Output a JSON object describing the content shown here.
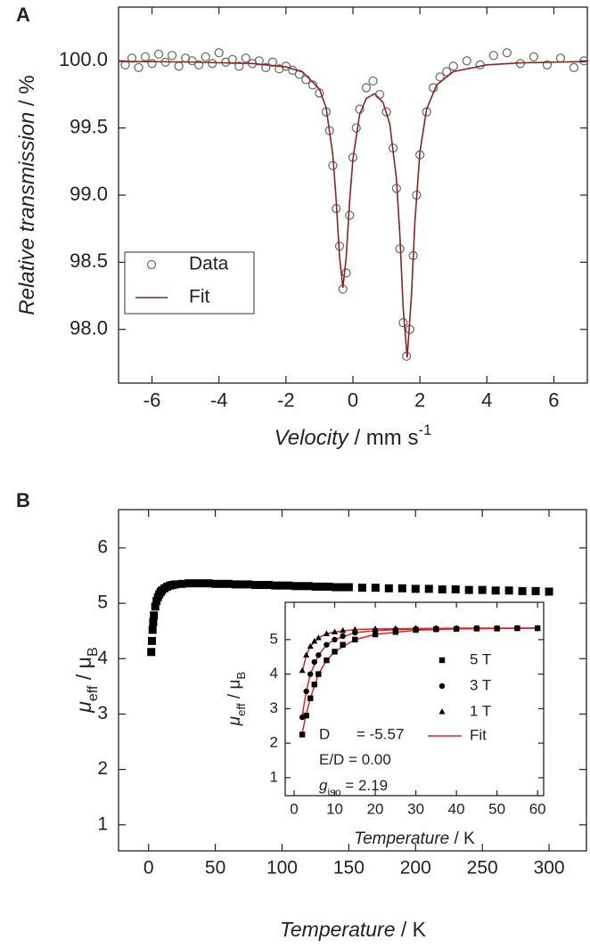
{
  "chart_data": [
    {
      "type": "scatter",
      "panel": "A",
      "x_label": [
        "Velocity",
        " / mm s",
        "-1"
      ],
      "y_label": [
        "Relative transmission",
        " / %"
      ],
      "xlim": [
        -7,
        7
      ],
      "xticks": [
        -6,
        -4,
        -2,
        0,
        2,
        4,
        6
      ],
      "ylim": [
        97.6,
        100.4
      ],
      "yticks": [
        {
          "value": 98,
          "label": "98.0"
        },
        {
          "value": 98.5,
          "label": "98.5"
        },
        {
          "value": 99,
          "label": "99.0"
        },
        {
          "value": 99.5,
          "label": "99.5"
        },
        {
          "value": 100,
          "label": "100.0"
        }
      ],
      "legend": "lower left",
      "series": [
        {
          "name": "Data",
          "color": "#707070",
          "marker": "open-circle",
          "x": [
            -6.8,
            -6.6,
            -6.4,
            -6.2,
            -6.0,
            -5.8,
            -5.6,
            -5.4,
            -5.2,
            -5.0,
            -4.8,
            -4.6,
            -4.4,
            -4.2,
            -4.0,
            -3.8,
            -3.6,
            -3.4,
            -3.2,
            -3.0,
            -2.8,
            -2.6,
            -2.4,
            -2.2,
            -2.0,
            -1.8,
            -1.6,
            -1.4,
            -1.2,
            -1.0,
            -0.8,
            -0.7,
            -0.6,
            -0.5,
            -0.4,
            -0.3,
            -0.2,
            -0.1,
            0.0,
            0.1,
            0.2,
            0.4,
            0.6,
            0.8,
            1.0,
            1.2,
            1.3,
            1.4,
            1.5,
            1.6,
            1.7,
            1.8,
            1.9,
            2.0,
            2.2,
            2.4,
            2.6,
            2.8,
            3.0,
            3.4,
            3.8,
            4.2,
            4.6,
            5.0,
            5.4,
            5.8,
            6.2,
            6.6,
            6.9
          ],
          "values": [
            99.97,
            100.02,
            99.95,
            100.03,
            99.98,
            100.05,
            99.99,
            100.04,
            99.96,
            100.02,
            100.0,
            99.97,
            100.03,
            99.98,
            100.06,
            99.99,
            100.01,
            99.96,
            100.02,
            99.98,
            100.0,
            99.95,
            99.99,
            99.94,
            99.96,
            99.93,
            99.9,
            99.86,
            99.82,
            99.76,
            99.62,
            99.48,
            99.22,
            98.9,
            98.62,
            98.3,
            98.42,
            98.85,
            99.28,
            99.5,
            99.64,
            99.8,
            99.85,
            99.75,
            99.62,
            99.35,
            99.05,
            98.6,
            98.05,
            97.8,
            98.0,
            98.55,
            99.0,
            99.3,
            99.62,
            99.8,
            99.88,
            99.92,
            99.96,
            100.0,
            99.97,
            100.04,
            100.06,
            99.98,
            100.03,
            99.97,
            100.02,
            99.95,
            100.0
          ]
        },
        {
          "name": "Fit",
          "color": "#8b2323",
          "type": "line",
          "x": [
            -7,
            -5,
            -3,
            -2,
            -1.5,
            -1,
            -0.8,
            -0.6,
            -0.5,
            -0.4,
            -0.3,
            -0.2,
            -0.1,
            0,
            0.2,
            0.4,
            0.65,
            0.9,
            1.1,
            1.3,
            1.4,
            1.5,
            1.62,
            1.75,
            1.85,
            2.0,
            2.2,
            2.5,
            3,
            4,
            5,
            7
          ],
          "values": [
            99.996,
            99.992,
            99.98,
            99.955,
            99.917,
            99.79,
            99.65,
            99.3,
            98.96,
            98.54,
            98.31,
            98.54,
            98.95,
            99.27,
            99.6,
            99.72,
            99.755,
            99.69,
            99.53,
            99.12,
            98.71,
            98.16,
            97.79,
            98.26,
            98.8,
            99.32,
            99.64,
            99.82,
            99.92,
            99.97,
            99.985,
            99.995
          ]
        }
      ]
    },
    {
      "type": "scatter",
      "panel": "B",
      "x_label": [
        "Temperature",
        " / K"
      ],
      "y_label": [
        "μ",
        "eff",
        " / μ",
        "B"
      ],
      "xlim": [
        -22.5,
        328
      ],
      "xticks": [
        0,
        50,
        100,
        150,
        200,
        250,
        300
      ],
      "ylim": [
        0.53,
        6.69
      ],
      "yticks": [
        1,
        2,
        3,
        4,
        5,
        6
      ],
      "series": [
        {
          "color": "#000000",
          "marker": "square",
          "x": [
            2,
            2.5,
            3,
            3.5,
            4,
            5,
            6,
            7,
            8,
            9,
            10,
            12,
            14,
            16,
            18,
            20,
            25,
            30,
            35,
            40,
            45,
            50,
            55,
            60,
            65,
            70,
            75,
            80,
            85,
            90,
            95,
            100,
            105,
            110,
            115,
            120,
            125,
            130,
            135,
            140,
            145,
            150,
            160,
            170,
            180,
            190,
            200,
            210,
            220,
            230,
            240,
            250,
            260,
            270,
            280,
            290,
            300
          ],
          "values": [
            4.12,
            4.32,
            4.52,
            4.66,
            4.78,
            4.94,
            5.04,
            5.11,
            5.16,
            5.2,
            5.23,
            5.27,
            5.3,
            5.32,
            5.33,
            5.34,
            5.35,
            5.36,
            5.36,
            5.36,
            5.36,
            5.35,
            5.35,
            5.35,
            5.34,
            5.34,
            5.34,
            5.33,
            5.33,
            5.33,
            5.32,
            5.32,
            5.32,
            5.31,
            5.31,
            5.31,
            5.3,
            5.3,
            5.3,
            5.29,
            5.29,
            5.29,
            5.28,
            5.28,
            5.27,
            5.27,
            5.26,
            5.26,
            5.25,
            5.25,
            5.24,
            5.24,
            5.23,
            5.23,
            5.22,
            5.22,
            5.21
          ]
        }
      ]
    },
    {
      "type": "scatter",
      "inset": true,
      "x_label": [
        "Temperature",
        " / K"
      ],
      "y_label": [
        "μ",
        "eff",
        " / μ",
        "B"
      ],
      "xlim": [
        -2.2,
        61.5
      ],
      "xticks": [
        0,
        10,
        20,
        30,
        40,
        50,
        60
      ],
      "ylim": [
        0.48,
        6.08
      ],
      "yticks": [
        1,
        2,
        3,
        4,
        5
      ],
      "legend": "center right",
      "x": [
        2,
        3,
        4,
        5,
        6,
        8,
        10,
        12,
        15,
        20,
        25,
        30,
        35,
        40,
        45,
        50,
        55,
        60
      ],
      "series": [
        {
          "name": "5 T",
          "color": "#000000",
          "marker": "square",
          "values": [
            2.25,
            2.8,
            3.3,
            3.7,
            4.0,
            4.4,
            4.65,
            4.85,
            5.0,
            5.15,
            5.22,
            5.28,
            5.3,
            5.31,
            5.32,
            5.32,
            5.33,
            5.33
          ]
        },
        {
          "name": "3 T",
          "color": "#000000",
          "marker": "circle",
          "values": [
            2.75,
            3.5,
            4.0,
            4.35,
            4.55,
            4.85,
            5.0,
            5.1,
            5.2,
            5.26,
            5.29,
            5.31,
            5.32,
            5.32,
            5.33,
            5.33,
            5.33,
            5.33
          ]
        },
        {
          "name": "1 T",
          "color": "#000000",
          "marker": "triangle",
          "values": [
            4.1,
            4.55,
            4.8,
            4.95,
            5.05,
            5.17,
            5.22,
            5.26,
            5.29,
            5.31,
            5.32,
            5.33,
            5.33,
            5.33,
            5.33,
            5.33,
            5.33,
            5.33
          ]
        }
      ],
      "fit": {
        "name": "Fit",
        "color": "#e02424",
        "x": [
          2,
          3,
          4,
          6,
          8,
          10,
          15,
          20,
          30,
          40,
          60
        ],
        "curves": [
          [
            2.3,
            2.85,
            3.3,
            4.0,
            4.4,
            4.65,
            5.0,
            5.15,
            5.27,
            5.31,
            5.33
          ],
          [
            2.8,
            3.5,
            4.0,
            4.55,
            4.85,
            5.0,
            5.2,
            5.26,
            5.31,
            5.32,
            5.33
          ],
          [
            4.05,
            4.55,
            4.8,
            5.05,
            5.17,
            5.22,
            5.29,
            5.31,
            5.32,
            5.33,
            5.33
          ]
        ]
      },
      "annotations": [
        [
          "D",
          "= -5.57"
        ],
        [
          "E/D = 0.00"
        ],
        [
          "g",
          "iso",
          " = 2.19"
        ]
      ]
    }
  ]
}
